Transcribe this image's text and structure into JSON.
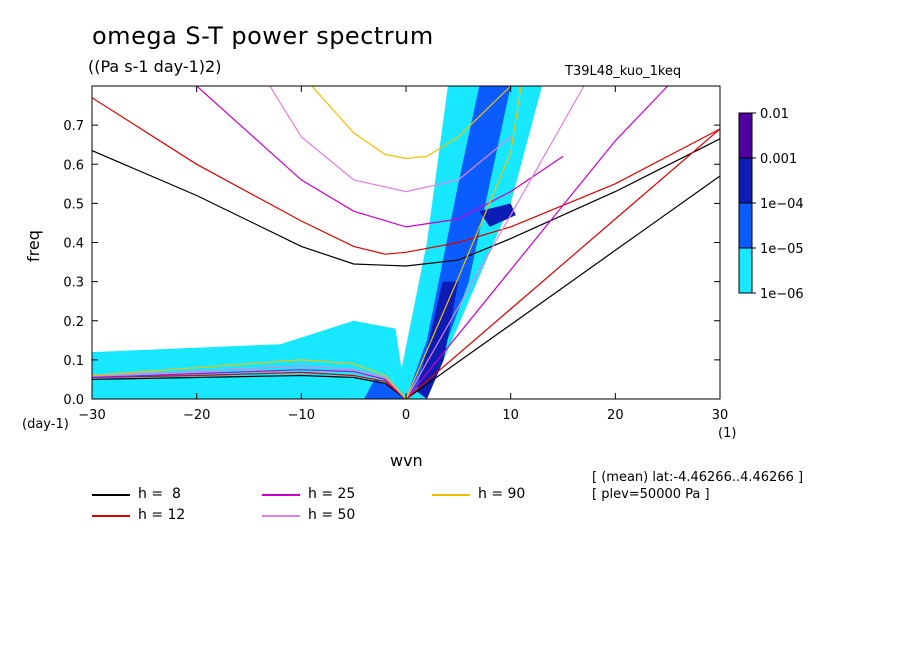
{
  "title": "omega S-T power spectrum",
  "subtitle": "((Pa s-1 day-1)2)",
  "run_name": "T39L48_kuo_1keq",
  "meta": [
    "[ (mean) lat:-4.46266..4.46266 ]",
    "[ plev=50000 Pa ]"
  ],
  "legend": [
    {
      "label": "h =  8",
      "color": "#000000"
    },
    {
      "label": "h = 12",
      "color": "#e00000"
    },
    {
      "label": "h = 25",
      "color": "#cc00cc"
    },
    {
      "label": "h = 50",
      "color": "#e080e0"
    },
    {
      "label": "h = 90",
      "color": "#f2c000"
    }
  ],
  "chart_data": {
    "type": "heatmap",
    "title": "omega S-T power spectrum",
    "subtitle": "((Pa s-1 day-1)2)",
    "xlabel": "wvn",
    "ylabel": "freq",
    "x_unit": "(1)",
    "y_unit": "(day-1)",
    "xlim": [
      -30,
      30
    ],
    "ylim": [
      0,
      0.8
    ],
    "xticks": [
      -30,
      -20,
      -10,
      0,
      10,
      20,
      30
    ],
    "yticks": [
      0.0,
      0.1,
      0.2,
      0.3,
      0.4,
      0.5,
      0.6,
      0.7
    ],
    "ytick_labels": [
      "0.0",
      "0.1",
      "0.2",
      "0.3",
      "0.4",
      "0.5",
      "0.6",
      "0.7"
    ],
    "colorbar": {
      "levels": [
        "0.01",
        "0.001",
        "1e-04",
        "1e-05",
        "1e-06"
      ],
      "colors": [
        "#5000a0",
        "#0c1cb4",
        "#0a5cff",
        "#18e8ff"
      ],
      "scale": "log"
    },
    "contour_regions": [
      {
        "level": "1e-06",
        "color": "#18e8ff",
        "polygon": [
          [
            -1,
            0
          ],
          [
            2,
            0.4
          ],
          [
            4,
            0.8
          ],
          [
            13,
            0.8
          ],
          [
            10,
            0.5
          ],
          [
            6,
            0.25
          ],
          [
            2,
            0
          ]
        ]
      },
      {
        "level": "1e-06",
        "color": "#18e8ff",
        "polygon": [
          [
            -30,
            0
          ],
          [
            -30,
            0.12
          ],
          [
            -12,
            0.14
          ],
          [
            -5,
            0.2
          ],
          [
            -1,
            0.18
          ],
          [
            0,
            0
          ]
        ]
      },
      {
        "level": "1e-05",
        "color": "#0a5cff",
        "polygon": [
          [
            0,
            0
          ],
          [
            2,
            0.15
          ],
          [
            3.5,
            0.35
          ],
          [
            5,
            0.55
          ],
          [
            7,
            0.8
          ],
          [
            10,
            0.8
          ],
          [
            8,
            0.55
          ],
          [
            6,
            0.3
          ],
          [
            3,
            0.08
          ]
        ]
      },
      {
        "level": "1e-05",
        "color": "#0a5cff",
        "polygon": [
          [
            -4,
            0
          ],
          [
            -3,
            0.05
          ],
          [
            -1,
            0.03
          ],
          [
            0,
            0
          ]
        ]
      },
      {
        "level": "1e-04",
        "color": "#0c1cb4",
        "polygon": [
          [
            1,
            0.02
          ],
          [
            2.2,
            0.15
          ],
          [
            3.5,
            0.3
          ],
          [
            5,
            0.3
          ],
          [
            3.6,
            0.1
          ],
          [
            2,
            0
          ]
        ]
      },
      {
        "level": "1e-04",
        "color": "#0c1cb4",
        "polygon": [
          [
            7,
            0.48
          ],
          [
            10,
            0.5
          ],
          [
            10.5,
            0.47
          ],
          [
            8,
            0.44
          ]
        ]
      }
    ],
    "series": [
      {
        "name": "h =  8",
        "color": "#000000",
        "branches": [
          {
            "x": [
              -30,
              -20,
              -10,
              -5,
              0,
              5,
              10,
              20,
              30
            ],
            "y": [
              0.635,
              0.52,
              0.39,
              0.345,
              0.34,
              0.355,
              0.41,
              0.53,
              0.665
            ]
          },
          {
            "x": [
              -30,
              -20,
              -10,
              -5,
              -2,
              0
            ],
            "y": [
              0.05,
              0.055,
              0.06,
              0.055,
              0.04,
              0
            ]
          },
          {
            "x": [
              0,
              10,
              20,
              30
            ],
            "y": [
              0,
              0.19,
              0.38,
              0.57
            ]
          }
        ]
      },
      {
        "name": "h = 12",
        "color": "#e00000",
        "branches": [
          {
            "x": [
              -30,
              -20,
              -10,
              -5,
              -2,
              0,
              5,
              10,
              20,
              30
            ],
            "y": [
              0.77,
              0.6,
              0.455,
              0.39,
              0.37,
              0.375,
              0.4,
              0.44,
              0.55,
              0.69
            ]
          },
          {
            "x": [
              -30,
              -20,
              -10,
              -5,
              -2,
              0
            ],
            "y": [
              0.055,
              0.06,
              0.068,
              0.06,
              0.045,
              0
            ]
          },
          {
            "x": [
              0,
              10,
              20,
              30
            ],
            "y": [
              0,
              0.23,
              0.46,
              0.69
            ]
          }
        ]
      },
      {
        "name": "h = 25",
        "color": "#cc00cc",
        "branches": [
          {
            "x": [
              -20,
              -10,
              -5,
              0,
              5,
              10,
              15
            ],
            "y": [
              0.8,
              0.56,
              0.48,
              0.44,
              0.46,
              0.53,
              0.62
            ]
          },
          {
            "x": [
              -30,
              -20,
              -10,
              -5,
              -2,
              0
            ],
            "y": [
              0.055,
              0.065,
              0.075,
              0.07,
              0.05,
              0
            ]
          },
          {
            "x": [
              0,
              10,
              20,
              25
            ],
            "y": [
              0,
              0.33,
              0.66,
              0.8
            ]
          }
        ]
      },
      {
        "name": "h = 50",
        "color": "#e080e0",
        "branches": [
          {
            "x": [
              -13,
              -10,
              -5,
              0,
              5,
              10
            ],
            "y": [
              0.8,
              0.67,
              0.56,
              0.53,
              0.56,
              0.67
            ]
          },
          {
            "x": [
              -30,
              -20,
              -10,
              -5,
              -2,
              0
            ],
            "y": [
              0.06,
              0.07,
              0.085,
              0.075,
              0.055,
              0
            ]
          },
          {
            "x": [
              0,
              10,
              17
            ],
            "y": [
              0,
              0.47,
              0.8
            ]
          }
        ]
      },
      {
        "name": "h = 90",
        "color": "#f2c000",
        "branches": [
          {
            "x": [
              -9,
              -5,
              -2,
              0,
              2,
              5,
              10
            ],
            "y": [
              0.8,
              0.68,
              0.625,
              0.615,
              0.62,
              0.67,
              0.8
            ]
          },
          {
            "x": [
              -30,
              -20,
              -10,
              -5,
              -2,
              0
            ],
            "y": [
              0.06,
              0.08,
              0.1,
              0.09,
              0.06,
              0
            ]
          },
          {
            "x": [
              0,
              5,
              10,
              11
            ],
            "y": [
              0,
              0.31,
              0.63,
              0.8
            ]
          }
        ]
      }
    ]
  }
}
